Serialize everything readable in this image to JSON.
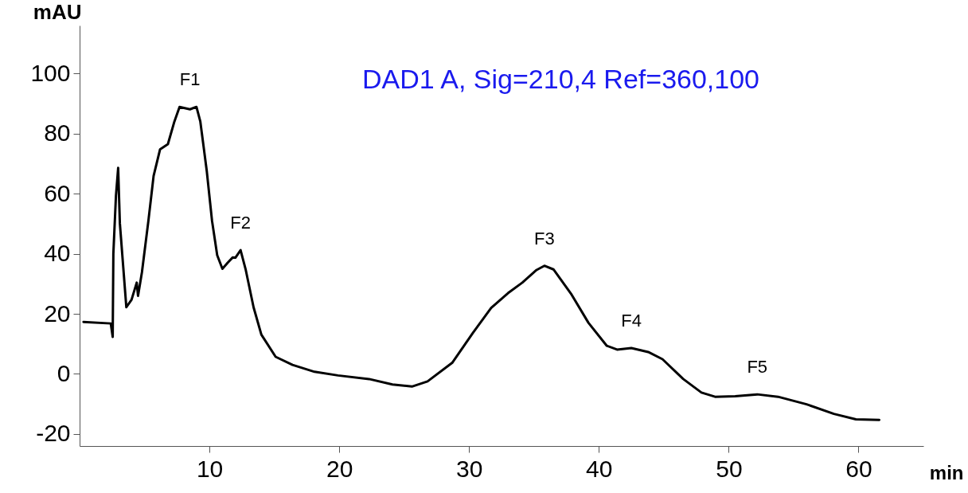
{
  "chart_data": {
    "type": "line",
    "xlabel": "min",
    "ylabel": "mAU",
    "xlim": [
      0,
      65
    ],
    "xticks": [
      10,
      20,
      30,
      40,
      50,
      60
    ],
    "ylim": [
      -24,
      116
    ],
    "yticks": [
      -20,
      0,
      20,
      40,
      60,
      80,
      100
    ],
    "grid": false,
    "marker": "none",
    "line_style": "solid",
    "series": [
      {
        "color": "#000000",
        "x": [
          0.3,
          2.4,
          2.55,
          2.6,
          2.8,
          2.97,
          3.1,
          3.6,
          4.0,
          4.4,
          4.5,
          4.8,
          5.3,
          5.7,
          6.2,
          6.8,
          7.3,
          7.7,
          8.5,
          9.0,
          9.3,
          9.8,
          10.2,
          10.6,
          11.0,
          11.4,
          11.8,
          12.0,
          12.4,
          12.8,
          13.4,
          14.0,
          15.1,
          16.4,
          18.1,
          19.9,
          22.3,
          24.1,
          25.6,
          26.8,
          28.7,
          30.3,
          31.7,
          33.0,
          34.1,
          35.2,
          35.8,
          36.5,
          37.9,
          39.2,
          40.6,
          41.4,
          42.5,
          43.8,
          44.9,
          46.5,
          47.9,
          48.95,
          50.5,
          52.2,
          53.8,
          56.0,
          58.1,
          59.8,
          61.6
        ],
        "values": [
          17.3,
          16.8,
          12.3,
          40,
          59.3,
          68.6,
          50.2,
          22.2,
          24.7,
          30.4,
          26,
          33.8,
          51,
          65.9,
          74.8,
          76.5,
          84,
          88.9,
          88.1,
          88.9,
          84,
          67.4,
          51,
          39.5,
          35,
          37,
          38.8,
          38.7,
          41.2,
          34.6,
          22.2,
          13.1,
          5.7,
          3,
          0.7,
          -0.5,
          -1.7,
          -3.5,
          -4.2,
          -2.5,
          3.7,
          13.7,
          22,
          26.9,
          30.4,
          34.6,
          36,
          34.8,
          26.4,
          17,
          9.4,
          8.1,
          8.6,
          7.3,
          4.9,
          -1.7,
          -6.2,
          -7.6,
          -7.4,
          -6.8,
          -7.6,
          -10.1,
          -13.3,
          -15.1,
          -15.3
        ]
      }
    ],
    "annotations": [
      "DAD1 A, Sig=210,4 Ref=360,100",
      {
        "text": "F1",
        "x": 8.5,
        "y": 88.9
      },
      {
        "text": "F2",
        "x": 12.4,
        "y": 41.2
      },
      {
        "text": "F3",
        "x": 35.8,
        "y": 36
      },
      {
        "text": "F4",
        "x": 42.5,
        "y": 8.6
      },
      {
        "text": "F5",
        "x": 52.2,
        "y": -6.8
      }
    ]
  }
}
